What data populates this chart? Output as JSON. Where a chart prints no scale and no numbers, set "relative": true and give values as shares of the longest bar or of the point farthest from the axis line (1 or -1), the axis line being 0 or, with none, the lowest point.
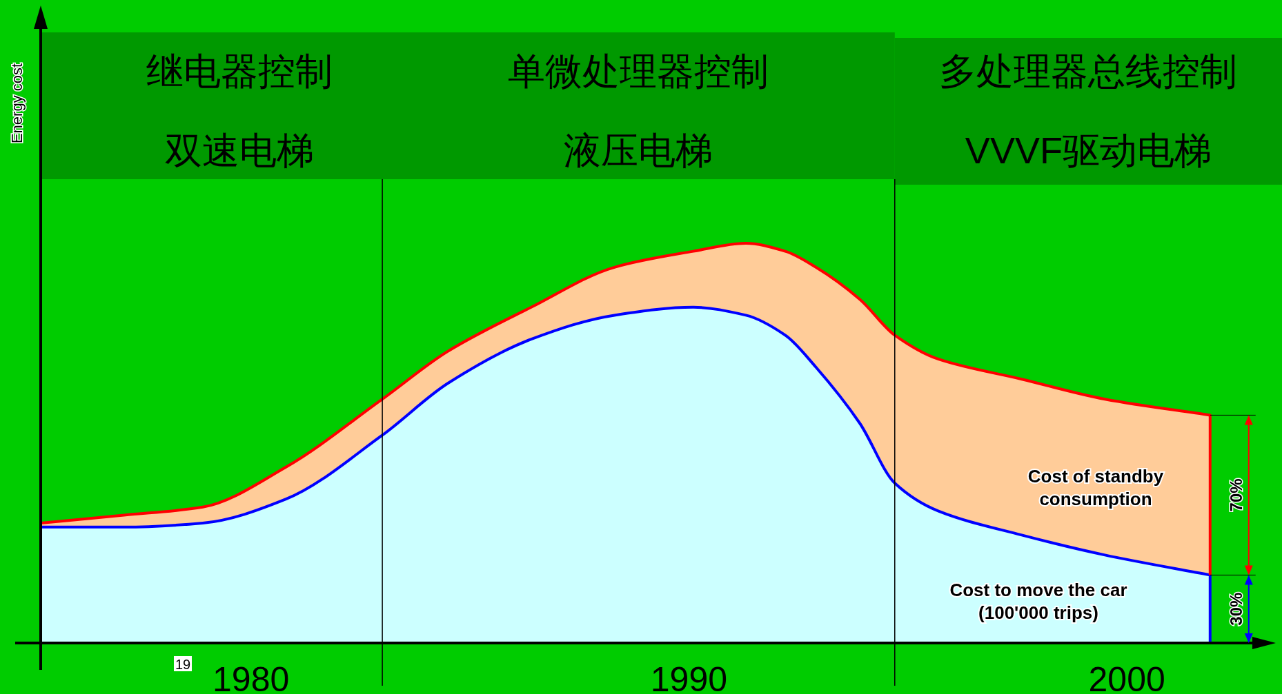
{
  "chart_data": {
    "type": "area",
    "stacked": true,
    "relative": true,
    "x": [
      1975.2,
      1977.1,
      1978.9,
      1980.8,
      1983.0,
      1984.5,
      1986.4,
      1988.3,
      1990.1,
      1991.3,
      1992.2,
      1992.9,
      1993.9,
      1994.7,
      1995.7,
      1997.6,
      1999.5,
      2001.9
    ],
    "xlim": [
      1975.2,
      2003.4
    ],
    "xticks": [
      1980,
      1990,
      2000
    ],
    "series": [
      {
        "name": "Cost to move the car\n(100'000 trips)",
        "color": "#ccffff",
        "values": [
          0.29,
          0.29,
          0.3,
          0.36,
          0.52,
          0.65,
          0.76,
          0.82,
          0.84,
          0.82,
          0.77,
          0.69,
          0.55,
          0.4,
          0.33,
          0.27,
          0.22,
          0.17
        ]
      },
      {
        "name": "Cost of standby\nconsumption",
        "color": "#ffcc99",
        "values": [
          0.01,
          0.03,
          0.04,
          0.08,
          0.09,
          0.08,
          0.08,
          0.12,
          0.14,
          0.18,
          0.21,
          0.25,
          0.31,
          0.37,
          0.38,
          0.39,
          0.39,
          0.4
        ]
      }
    ],
    "ref_lines": [
      {
        "axis": "x",
        "value": 1983.0,
        "color": "#000000"
      },
      {
        "axis": "x",
        "value": 1994.7,
        "color": "#000000"
      }
    ],
    "annotations": [
      "继电器控制",
      "双速电梯",
      "单微处理器控制",
      "液压电梯",
      "多处理器总线控制",
      "VVVF驱动电梯",
      "Energy cost",
      "70%",
      "30%",
      "19"
    ]
  }
}
